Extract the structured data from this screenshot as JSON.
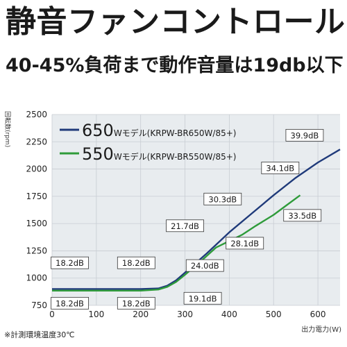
{
  "header": {
    "title": "静音ファンコントロール",
    "subtitle": "40-45%負荷まで動作音量は19db以下"
  },
  "footnote": "※計測環境温度30℃",
  "colors": {
    "series_650": "#1f3a7a",
    "series_550": "#2e9b3a",
    "grid": "#c8cdd3",
    "plot_bg": "#e8ecef",
    "label_border": "#333333"
  },
  "chart_data": {
    "type": "line",
    "xlabel": "出力電力(W)",
    "ylabel": "回転数(rpm)",
    "xlim": [
      0,
      650
    ],
    "ylim": [
      750,
      2500
    ],
    "xticks": [
      "0",
      "100",
      "200",
      "300",
      "400",
      "500",
      "600"
    ],
    "yticks": [
      "750",
      "1000",
      "1250",
      "1500",
      "1750",
      "2000",
      "2250",
      "2500"
    ],
    "grid": true,
    "legend_position": "top-left",
    "legend": [
      {
        "big": "650",
        "small": "Wモデル(KRPW-BR650W/85+)",
        "series": "650W"
      },
      {
        "big": "550",
        "small": "Wモデル(KRPW-BR550W/85+)",
        "series": "550W"
      }
    ],
    "series": [
      {
        "name": "650W",
        "x": [
          0,
          100,
          200,
          240,
          260,
          280,
          300,
          350,
          400,
          450,
          500,
          550,
          600,
          650
        ],
        "y": [
          900,
          900,
          900,
          905,
          930,
          980,
          1050,
          1230,
          1420,
          1590,
          1760,
          1920,
          2060,
          2180
        ]
      },
      {
        "name": "550W",
        "x": [
          0,
          100,
          200,
          240,
          260,
          280,
          300,
          340,
          370,
          400,
          430,
          460,
          500,
          530,
          560
        ],
        "y": [
          885,
          885,
          885,
          895,
          920,
          965,
          1030,
          1170,
          1280,
          1340,
          1400,
          1480,
          1580,
          1670,
          1760
        ]
      }
    ],
    "annotations": [
      {
        "text": "18.2dB",
        "x": 40,
        "y": 1140
      },
      {
        "text": "18.2dB",
        "x": 190,
        "y": 1140
      },
      {
        "text": "18.2dB",
        "x": 40,
        "y": 770
      },
      {
        "text": "18.2dB",
        "x": 190,
        "y": 770
      },
      {
        "text": "19.1dB",
        "x": 340,
        "y": 815
      },
      {
        "text": "21.7dB",
        "x": 300,
        "y": 1480
      },
      {
        "text": "24.0dB",
        "x": 345,
        "y": 1115
      },
      {
        "text": "28.1dB",
        "x": 435,
        "y": 1320
      },
      {
        "text": "30.3dB",
        "x": 385,
        "y": 1725
      },
      {
        "text": "33.5dB",
        "x": 565,
        "y": 1575
      },
      {
        "text": "34.1dB",
        "x": 515,
        "y": 2010
      },
      {
        "text": "39.9dB",
        "x": 570,
        "y": 2310
      }
    ]
  }
}
